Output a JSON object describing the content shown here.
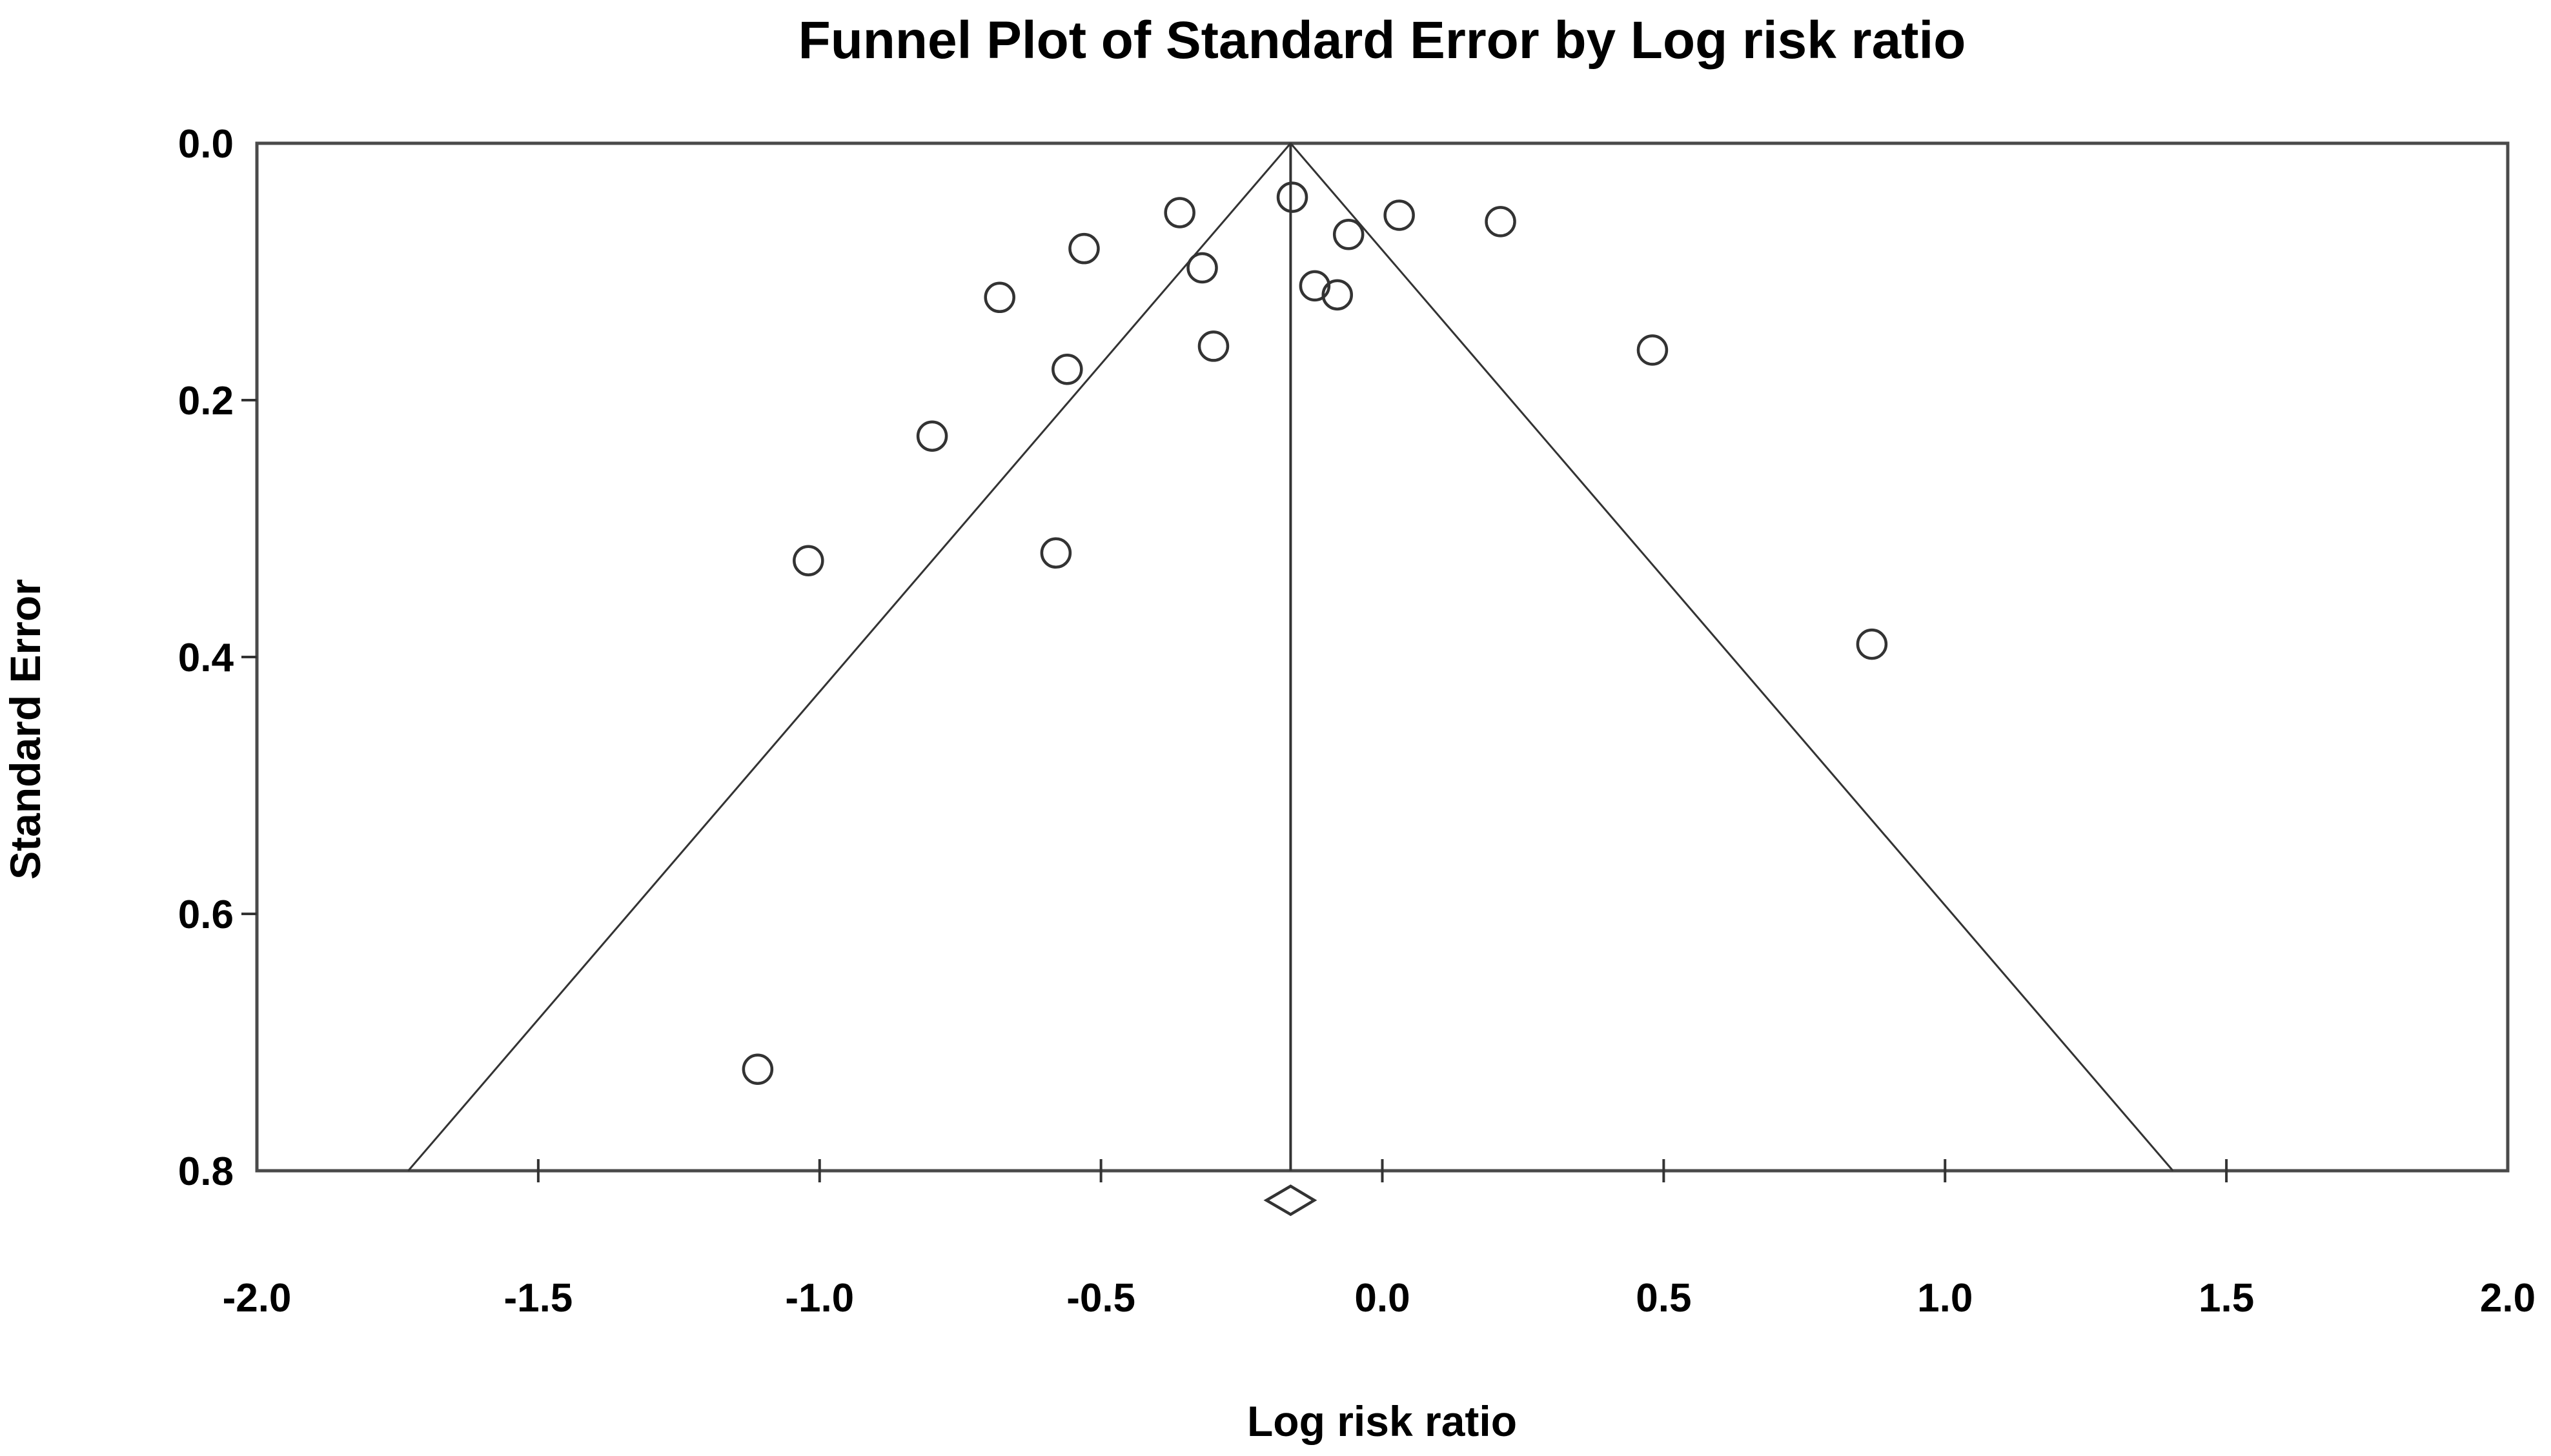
{
  "chart_data": {
    "type": "scatter",
    "title": "Funnel Plot of Standard Error by Log risk ratio",
    "xlabel": "Log risk ratio",
    "ylabel": "Standard Error",
    "xlim": [
      -2.0,
      2.0
    ],
    "ylim": [
      0.0,
      0.8
    ],
    "y_axis_inverted": true,
    "grid": false,
    "legend": "none",
    "x_ticks": [
      "-2.0",
      "-1.5",
      "-1.0",
      "-0.5",
      "0.0",
      "0.5",
      "1.0",
      "1.5",
      "2.0"
    ],
    "x_tick_values": [
      -2.0,
      -1.5,
      -1.0,
      -0.5,
      0.0,
      0.5,
      1.0,
      1.5,
      2.0
    ],
    "y_ticks": [
      "0.0",
      "0.2",
      "0.4",
      "0.6",
      "0.8"
    ],
    "y_tick_values": [
      0.0,
      0.2,
      0.4,
      0.6,
      0.8
    ],
    "marker": "open-circle",
    "points": [
      {
        "x": -0.16,
        "se": 0.042
      },
      {
        "x": -0.36,
        "se": 0.054
      },
      {
        "x": -0.53,
        "se": 0.082
      },
      {
        "x": -0.68,
        "se": 0.12
      },
      {
        "x": -0.32,
        "se": 0.097
      },
      {
        "x": -0.56,
        "se": 0.176
      },
      {
        "x": -0.3,
        "se": 0.158
      },
      {
        "x": -0.06,
        "se": 0.071
      },
      {
        "x": 0.03,
        "se": 0.056
      },
      {
        "x": 0.21,
        "se": 0.061
      },
      {
        "x": -0.12,
        "se": 0.111
      },
      {
        "x": -0.08,
        "se": 0.118
      },
      {
        "x": -0.8,
        "se": 0.228
      },
      {
        "x": -1.02,
        "se": 0.325
      },
      {
        "x": -0.58,
        "se": 0.319
      },
      {
        "x": 0.48,
        "se": 0.161
      },
      {
        "x": 0.87,
        "se": 0.39
      },
      {
        "x": -1.11,
        "se": 0.721
      }
    ],
    "funnel": {
      "mean_x": -0.163,
      "ci_multiplier": 1.96,
      "se_top": 0.0,
      "se_bottom": 0.8
    },
    "pooled_diamond": {
      "center_x": -0.163,
      "ci_low": -0.206,
      "ci_high": -0.121,
      "y_center_se": 0.823,
      "half_height_se": 0.011
    },
    "colors": {
      "line": "#333333",
      "border": "#4a4a4a",
      "text": "#000000",
      "background": "#ffffff"
    }
  }
}
